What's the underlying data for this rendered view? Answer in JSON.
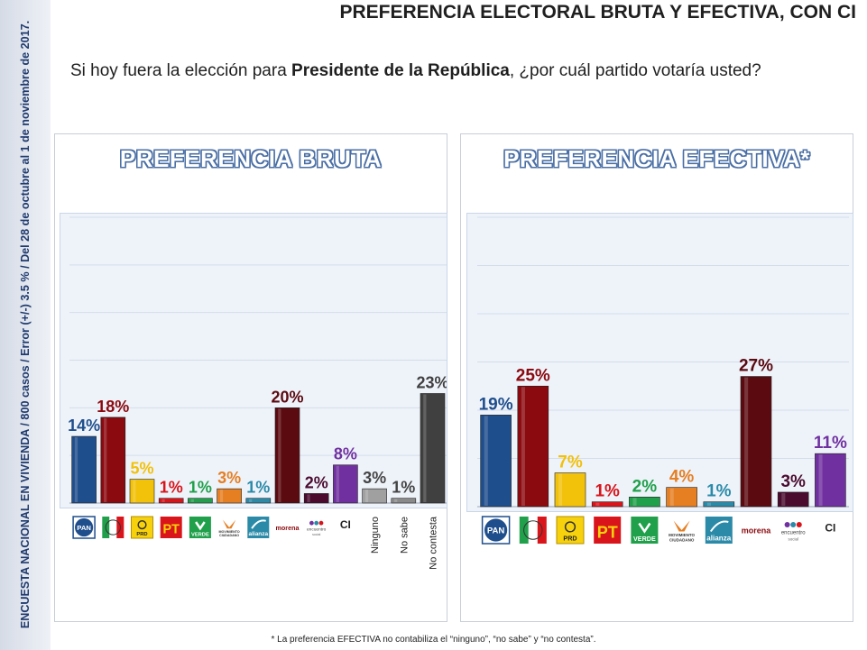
{
  "sidebar_text": "ENCUESTA NACIONAL EN VIVIENDA / 800 casos / Error (+/-) 3.5 % / Del 28 de octubre al 1 de noviembre de 2017.",
  "title": "PREFERENCIA ELECTORAL BRUTA Y EFECTIVA, CON CI",
  "question": {
    "prefix": "Si hoy fuera la elección para ",
    "bold": "Presidente de la República",
    "suffix": ", ¿por cuál partido votaría usted?"
  },
  "footnote": "* La preferencia EFECTIVA no contabiliza el “ninguno”, “no sabe” y “no contesta”.",
  "logo_names": {
    "PAN": "PAN",
    "PRD_text": "PRD",
    "PT": "PT",
    "VERDE": "VERDE",
    "MC1": "MOVIMIENTO",
    "MC2": "CIUDADANO",
    "alianza": "alianza",
    "morena": "morena",
    "encuentro": "encuentro",
    "social": "social"
  },
  "chart_data": [
    {
      "type": "bar",
      "title": "PREFERENCIA BRUTA",
      "ylim": [
        0,
        60
      ],
      "grid": true,
      "categories": [
        "PAN",
        "PRI",
        "PRD",
        "PT",
        "PVEM",
        "MC",
        "Nueva Alianza",
        "Morena",
        "Encuentro Social",
        "CI",
        "Ninguno",
        "No sabe",
        "No contesta"
      ],
      "values": [
        14,
        18,
        5,
        1,
        1,
        3,
        1,
        20,
        2,
        8,
        3,
        1,
        23
      ],
      "labels": [
        "14%",
        "18%",
        "5%",
        "1%",
        "1%",
        "3%",
        "1%",
        "20%",
        "2%",
        "8%",
        "3%",
        "1%",
        "23%"
      ],
      "text_categories": {
        "9": "CI",
        "10": "Ninguno",
        "11": "No sabe",
        "12": "No contesta"
      },
      "colors": [
        "#1f4e8c",
        "#8b0a0f",
        "#f2c10a",
        "#d9141b",
        "#20a04a",
        "#e67e22",
        "#2a8aa8",
        "#5b0a10",
        "#4a0b2e",
        "#7030a0",
        "#a0a0a0",
        "#8a8a8a",
        "#404040"
      ]
    },
    {
      "type": "bar",
      "title": "PREFERENCIA EFECTIVA*",
      "ylim": [
        0,
        60
      ],
      "grid": true,
      "categories": [
        "PAN",
        "PRI",
        "PRD",
        "PT",
        "PVEM",
        "MC",
        "Nueva Alianza",
        "Morena",
        "Encuentro Social",
        "CI"
      ],
      "values": [
        19,
        25,
        7,
        1,
        2,
        4,
        1,
        27,
        3,
        11
      ],
      "labels": [
        "19%",
        "25%",
        "7%",
        "1%",
        "2%",
        "4%",
        "1%",
        "27%",
        "3%",
        "11%"
      ],
      "text_categories": {
        "9": "CI"
      },
      "colors": [
        "#1f4e8c",
        "#8b0a0f",
        "#f2c10a",
        "#d9141b",
        "#20a04a",
        "#e67e22",
        "#2a8aa8",
        "#5b0a10",
        "#4a0b2e",
        "#7030a0"
      ]
    }
  ]
}
